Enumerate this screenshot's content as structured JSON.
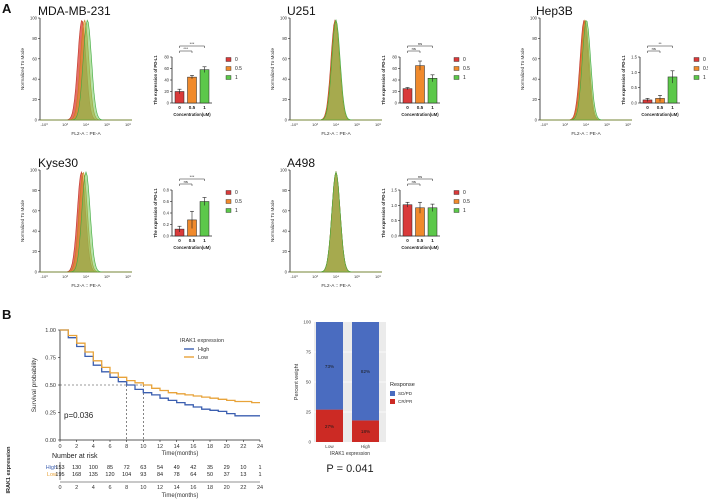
{
  "panel_letters": {
    "a": "A",
    "b": "B"
  },
  "flow_common": {
    "ylabel": "Normalized To Mode",
    "xlabel": "FL2-A :: PE-A",
    "yticks": [
      "0",
      "20",
      "40",
      "60",
      "80",
      "100"
    ],
    "xticks": [
      "-10³",
      "10³",
      "10⁴",
      "10⁵",
      "10⁶"
    ]
  },
  "bar_common": {
    "ylabel": "The expression of PD-L1",
    "xlabel": "Concentration(uM)",
    "categories": [
      "0",
      "0.5",
      "1"
    ],
    "legend": [
      "0",
      "0.5",
      "1"
    ],
    "colors": [
      "#d93a3a",
      "#f08a2c",
      "#5cc84a"
    ]
  },
  "chart_data": [
    {
      "type": "histogram",
      "title": "MDA-MB-231",
      "peaks": [
        45.5,
        48.5,
        51.5
      ]
    },
    {
      "type": "bar",
      "panel": "MDA-MB-231",
      "values": [
        20,
        45,
        58
      ],
      "errors": [
        4,
        3,
        5
      ],
      "ylim": [
        0,
        80
      ],
      "yticks": [
        "0",
        "20",
        "40",
        "60",
        "80"
      ],
      "sig": [
        {
          "a": 0,
          "b": 1,
          "text": "***"
        },
        {
          "a": 0,
          "b": 2,
          "text": "***"
        }
      ]
    },
    {
      "type": "histogram",
      "title": "U251",
      "peaks": [
        49,
        49.5,
        50
      ]
    },
    {
      "type": "bar",
      "panel": "U251",
      "values": [
        25,
        65,
        43
      ],
      "errors": [
        2,
        8,
        6
      ],
      "ylim": [
        0,
        80
      ],
      "yticks": [
        "0",
        "20",
        "40",
        "60",
        "80"
      ],
      "sig": [
        {
          "a": 0,
          "b": 1,
          "text": "ns"
        },
        {
          "a": 0,
          "b": 2,
          "text": "ns"
        }
      ]
    },
    {
      "type": "histogram",
      "title": "Hep3B",
      "peaks": [
        48,
        49,
        50.5
      ]
    },
    {
      "type": "bar",
      "panel": "Hep3B",
      "values": [
        0.1,
        0.15,
        0.85
      ],
      "errors": [
        0.05,
        0.1,
        0.2
      ],
      "ylim": [
        0,
        1.5
      ],
      "yticks": [
        "0.0",
        "0.5",
        "1.0",
        "1.5"
      ],
      "sig": [
        {
          "a": 0,
          "b": 1,
          "text": "ns"
        },
        {
          "a": 0,
          "b": 2,
          "text": "**"
        }
      ]
    },
    {
      "type": "histogram",
      "title": "Kyse30",
      "peaks": [
        45,
        47,
        50
      ]
    },
    {
      "type": "bar",
      "panel": "Kyse30",
      "values": [
        0.12,
        0.28,
        0.6
      ],
      "errors": [
        0.05,
        0.15,
        0.07
      ],
      "ylim": [
        0,
        0.8
      ],
      "yticks": [
        "0.0",
        "0.2",
        "0.4",
        "0.6",
        "0.8"
      ],
      "sig": [
        {
          "a": 0,
          "b": 1,
          "text": "ns"
        },
        {
          "a": 0,
          "b": 2,
          "text": "***"
        }
      ]
    },
    {
      "type": "histogram",
      "title": "A498",
      "peaks": [
        50,
        50,
        50
      ]
    },
    {
      "type": "bar",
      "panel": "A498",
      "values": [
        1.02,
        0.92,
        0.92
      ],
      "errors": [
        0.08,
        0.18,
        0.12
      ],
      "ylim": [
        0,
        1.5
      ],
      "yticks": [
        "0.0",
        "0.5",
        "1.0",
        "1.5"
      ],
      "sig": [
        {
          "a": 0,
          "b": 1,
          "text": "ns"
        },
        {
          "a": 0,
          "b": 2,
          "text": "ns"
        }
      ]
    },
    {
      "type": "line",
      "subtype": "kaplan-meier",
      "ylabel": "Survival probability",
      "xlabel": "Time(months)",
      "ylim": [
        0,
        1
      ],
      "yticks": [
        "0.00",
        "0.25",
        "0.50",
        "0.75",
        "1.00"
      ],
      "xticks": [
        "0",
        "2",
        "4",
        "6",
        "8",
        "10",
        "12",
        "14",
        "16",
        "18",
        "20",
        "22",
        "24"
      ],
      "legend_title": "IRAK1 expression",
      "annotation": "p=0.036",
      "median_high": 8,
      "median_low": 10,
      "series": [
        {
          "name": "High",
          "color": "#3b5fb0",
          "x": [
            0,
            1,
            2,
            3,
            4,
            5,
            6,
            7,
            8,
            9,
            10,
            11,
            12,
            13,
            14,
            15,
            16,
            17,
            18,
            19,
            20,
            21,
            22,
            23,
            24
          ],
          "y": [
            1.0,
            0.93,
            0.85,
            0.76,
            0.68,
            0.62,
            0.57,
            0.53,
            0.5,
            0.46,
            0.43,
            0.41,
            0.38,
            0.36,
            0.34,
            0.32,
            0.3,
            0.28,
            0.27,
            0.26,
            0.24,
            0.22,
            0.22,
            0.22,
            0.22
          ]
        },
        {
          "name": "Low",
          "color": "#e8a33a",
          "x": [
            0,
            1,
            2,
            3,
            4,
            5,
            6,
            7,
            8,
            9,
            10,
            11,
            12,
            13,
            14,
            15,
            16,
            17,
            18,
            19,
            20,
            21,
            22,
            23,
            24
          ],
          "y": [
            1.0,
            0.95,
            0.88,
            0.8,
            0.72,
            0.66,
            0.61,
            0.57,
            0.54,
            0.52,
            0.5,
            0.47,
            0.45,
            0.43,
            0.42,
            0.41,
            0.4,
            0.39,
            0.38,
            0.37,
            0.36,
            0.35,
            0.35,
            0.34,
            0.34
          ]
        }
      ]
    },
    {
      "type": "table",
      "title": "Number at risk",
      "group_label": "IRAK1 expression",
      "rows": [
        {
          "label": "High",
          "color": "#3b5fb0",
          "values": [
            "153",
            "130",
            "100",
            "85",
            "72",
            "63",
            "54",
            "49",
            "42",
            "35",
            "29",
            "10",
            "1"
          ]
        },
        {
          "label": "Low",
          "color": "#e8a33a",
          "values": [
            "195",
            "168",
            "135",
            "120",
            "104",
            "93",
            "84",
            "78",
            "64",
            "50",
            "37",
            "13",
            "1"
          ]
        }
      ],
      "xticks": [
        "0",
        "2",
        "4",
        "6",
        "8",
        "10",
        "12",
        "14",
        "16",
        "18",
        "20",
        "22",
        "24"
      ],
      "xlabel": "Time(months)"
    },
    {
      "type": "bar",
      "subtype": "stacked-percent",
      "ylabel": "Percent weight",
      "xlabel": "IRAK1 expression",
      "categories": [
        "Low",
        "High"
      ],
      "ylim": [
        0,
        100
      ],
      "yticks": [
        "0",
        "25",
        "50",
        "75",
        "100"
      ],
      "series": [
        {
          "name": "CR/PR",
          "color": "#cc2a24",
          "values": [
            27,
            18
          ],
          "labels": [
            "27%",
            "18%"
          ]
        },
        {
          "name": "SD/PD",
          "color": "#4a6cc0",
          "values": [
            73,
            82
          ],
          "labels": [
            "73%",
            "82%"
          ]
        }
      ],
      "legend_title": "Response",
      "legend": [
        "SD/PD",
        "CR/PR"
      ],
      "footer": "P = 0.041"
    }
  ]
}
